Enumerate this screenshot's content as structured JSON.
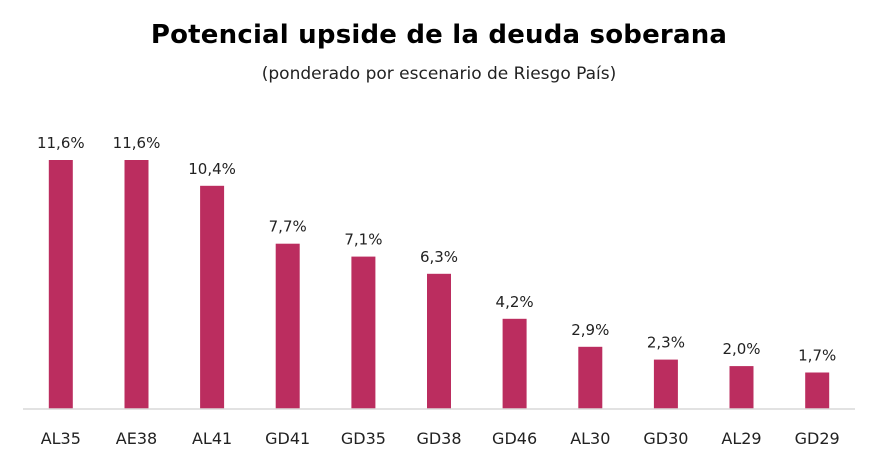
{
  "chart_data": {
    "type": "bar",
    "title": "Potencial upside de la deuda soberana",
    "subtitle": "(ponderado por escenario de Riesgo País)",
    "categories": [
      "AL35",
      "AE38",
      "AL41",
      "GD41",
      "GD35",
      "GD38",
      "GD46",
      "AL30",
      "GD30",
      "AL29",
      "GD29"
    ],
    "values": [
      11.6,
      11.6,
      10.4,
      7.7,
      7.1,
      6.3,
      4.2,
      2.9,
      2.3,
      2.0,
      1.7
    ],
    "data_labels": [
      "11,6%",
      "11,6%",
      "10,4%",
      "7,7%",
      "7,1%",
      "6,3%",
      "4,2%",
      "2,9%",
      "2,3%",
      "2,0%",
      "1,7%"
    ],
    "xlabel": "",
    "ylabel": "",
    "ylim": [
      0,
      11.6
    ],
    "grid": false,
    "bar_color": "#bb2d5f",
    "axis_color": "#d9d9d9"
  }
}
